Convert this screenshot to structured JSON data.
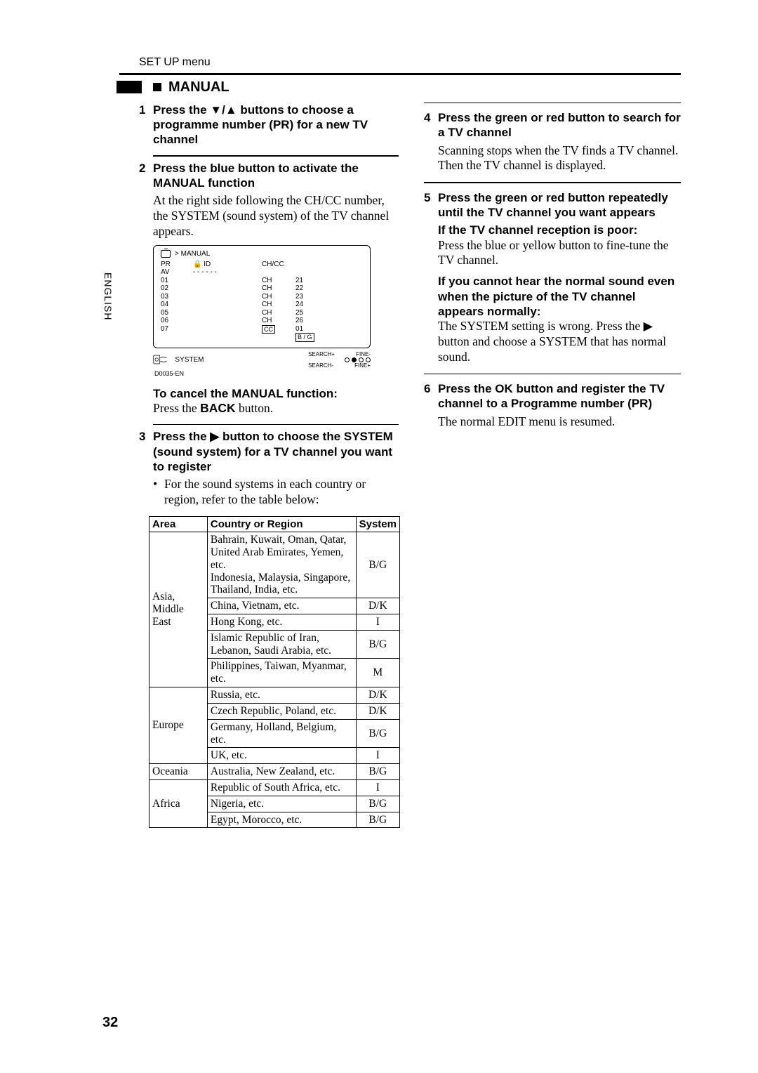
{
  "language_tab": "ENGLISH",
  "header": "SET UP menu",
  "section_title": "MANUAL",
  "left": {
    "step1": {
      "num": "1",
      "head": "Press the ▼/▲ buttons to choose a programme number (PR) for a new TV channel"
    },
    "step2": {
      "num": "2",
      "head": "Press the blue button to activate the MANUAL function",
      "body": "At the right side following the CH/CC number, the SYSTEM (sound system) of the TV channel appears."
    },
    "osd": {
      "breadcrumb": "> MANUAL",
      "col_pr": "PR",
      "col_id": "ID",
      "col_ch": "CH/CC",
      "pr": [
        "AV",
        "01",
        "02",
        "03",
        "04",
        "05",
        "06",
        "07"
      ],
      "id_dash": "- - - - - -",
      "ch_l": [
        "CH",
        "CH",
        "CH",
        "CH",
        "CH",
        "CH",
        "CC"
      ],
      "ch_r": [
        "21",
        "22",
        "23",
        "24",
        "25",
        "26",
        "01"
      ],
      "sys_box": "B / G",
      "system_label": "SYSTEM",
      "search_plus": "SEARCH+",
      "fine_minus": "FINE-",
      "search_minus": "SEARCH-",
      "fine_plus": "FINE+",
      "code": "D0035-EN",
      "lock": "🔒"
    },
    "cancel": {
      "head": "To cancel the MANUAL function:",
      "body_a": "Press the ",
      "back": "BACK",
      "body_b": " button."
    },
    "step3": {
      "num": "3",
      "head": "Press the ▶ button to choose the SYSTEM (sound system) for a TV channel you want to register",
      "bullet": "For the sound systems in each country or region, refer to the table below:"
    }
  },
  "table": {
    "headers": [
      "Area",
      "Country or Region",
      "System"
    ],
    "rows": [
      {
        "area": "Asia, Middle East",
        "span": 5,
        "region": "Bahrain, Kuwait, Oman, Qatar, United Arab Emirates, Yemen, etc.\nIndonesia, Malaysia, Singapore, Thailand, India, etc.",
        "system": "B/G"
      },
      {
        "region": "China, Vietnam, etc.",
        "system": "D/K"
      },
      {
        "region": "Hong Kong, etc.",
        "system": "I"
      },
      {
        "region": "Islamic Republic of Iran, Lebanon, Saudi Arabia, etc.",
        "system": "B/G"
      },
      {
        "region": "Philippines, Taiwan, Myanmar, etc.",
        "system": "M"
      },
      {
        "area": "Europe",
        "span": 4,
        "region": "Russia, etc.",
        "system": "D/K"
      },
      {
        "region": "Czech Republic, Poland, etc.",
        "system": "D/K"
      },
      {
        "region": "Germany, Holland, Belgium, etc.",
        "system": "B/G"
      },
      {
        "region": "UK, etc.",
        "system": "I"
      },
      {
        "area": "Oceania",
        "span": 1,
        "region": "Australia, New Zealand, etc.",
        "system": "B/G"
      },
      {
        "area": "Africa",
        "span": 3,
        "region": "Republic of South Africa, etc.",
        "system": "I"
      },
      {
        "region": "Nigeria, etc.",
        "system": "B/G"
      },
      {
        "region": "Egypt, Morocco, etc.",
        "system": "B/G"
      }
    ]
  },
  "right": {
    "step4": {
      "num": "4",
      "head": "Press the green or red button to search for a TV channel",
      "body": "Scanning stops when the TV finds a TV channel. Then the TV channel is displayed."
    },
    "step5": {
      "num": "5",
      "head": "Press the green or red button repeatedly until the TV channel you want appears",
      "poor_head": "If the TV channel reception is poor:",
      "poor_body": "Press the blue or yellow button to fine-tune the TV channel.",
      "nosound_head": "If you cannot hear the normal sound even when the picture of the TV channel appears normally:",
      "nosound_body": "The SYSTEM setting is wrong. Press the ▶ button and choose a SYSTEM that has normal sound."
    },
    "step6": {
      "num": "6",
      "head_a": "Press the ",
      "ok": "OK",
      "head_b": " button and register the TV channel to a Programme number (PR)",
      "body": "The normal EDIT menu is resumed."
    }
  },
  "page_number": "32"
}
